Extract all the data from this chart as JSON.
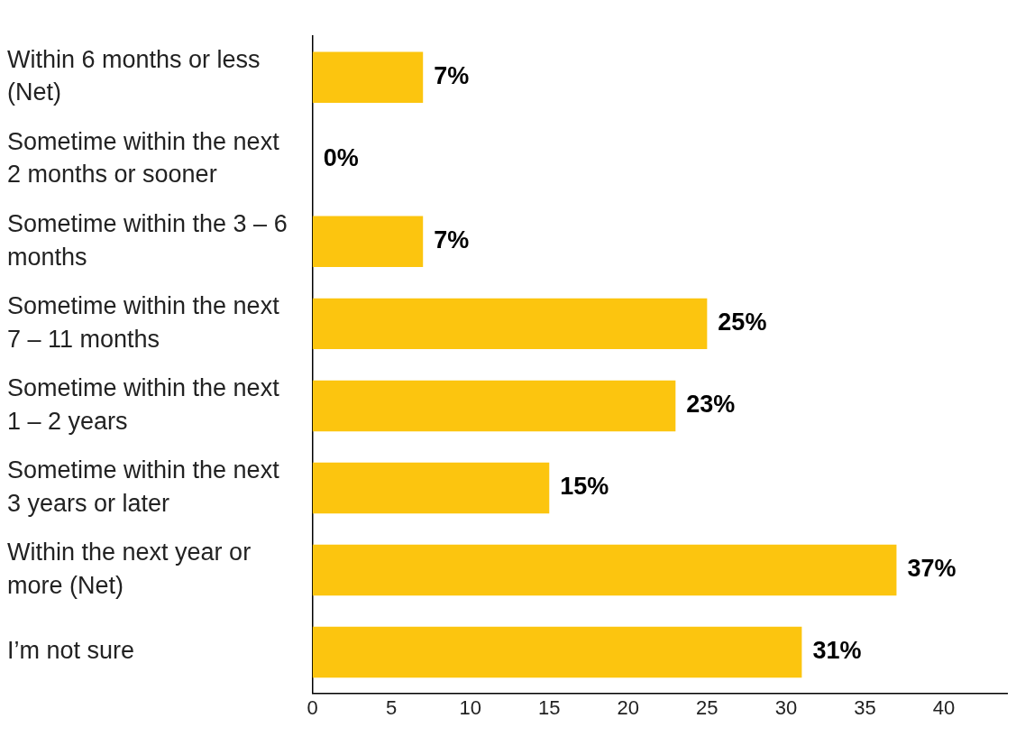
{
  "chart_data": {
    "type": "bar",
    "orientation": "horizontal",
    "categories": [
      "Within 6 months or less (Net)",
      "Sometime within the next 2 months or sooner",
      "Sometime within the 3 – 6 months",
      "Sometime within the next 7 – 11 months",
      "Sometime within the next 1 – 2 years",
      "Sometime within the next 3 years or later",
      "Within the next year or more (Net)",
      "I’m not sure"
    ],
    "values": [
      7,
      0,
      7,
      25,
      23,
      15,
      37,
      31
    ],
    "value_labels": [
      "7%",
      "0%",
      "7%",
      "25%",
      "23%",
      "15%",
      "37%",
      "31%"
    ],
    "color": "#fcc50f",
    "xlim": [
      0,
      44
    ],
    "xticks": [
      0,
      5,
      10,
      15,
      20,
      25,
      30,
      35,
      40
    ],
    "grid": false,
    "legend": false
  }
}
